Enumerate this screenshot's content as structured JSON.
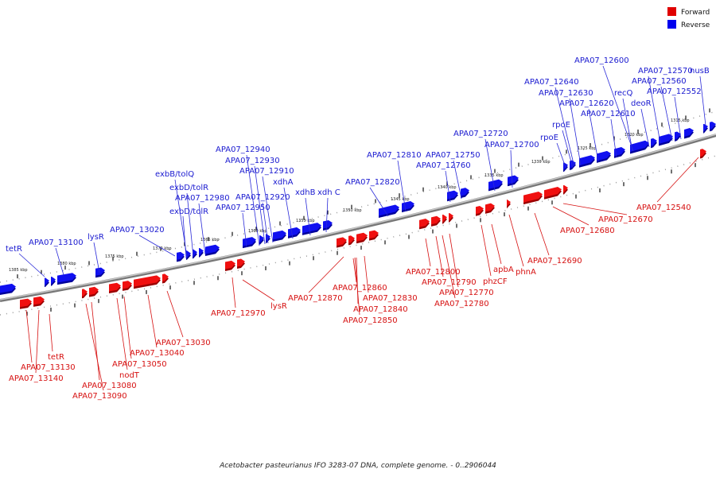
{
  "legend": {
    "items": [
      {
        "label": "Forward",
        "color": "#e00000"
      },
      {
        "label": "Reverse",
        "color": "#0000ee"
      }
    ]
  },
  "caption": "Acetobacter pasteurianus IFO 3283-07 DNA, complete genome. - 0..2906044",
  "ticks": [
    "1385 kbp",
    "1380 kbp",
    "1375 kbp",
    "1370 kbp",
    "1365 kbp",
    "1360 kbp",
    "1355 kbp",
    "1350 kbp",
    "1345 kbp",
    "1340 kbp",
    "1335 kbp",
    "1330 kbp",
    "1325 kbp",
    "1320 kbp",
    "1315 kbp"
  ],
  "labels": {
    "reverse": [
      "tetR",
      "APA07_13100",
      "lysR",
      "APA07_13020",
      "exbD/tolR",
      "APA07_12980",
      "exbD/tolR",
      "exbB/tolQ",
      "APA07_12950",
      "APA07_12920",
      "APA07_12910",
      "APA07_12930",
      "APA07_12940",
      "xdhA",
      "xdhB",
      "xdh C",
      "APA07_12820",
      "APA07_12810",
      "APA07_12760",
      "APA07_12750",
      "APA07_12720",
      "APA07_12700",
      "rpoE",
      "rpoE",
      "APA07_12640",
      "APA07_12630",
      "APA07_12620",
      "APA07_12610",
      "APA07_12600",
      "recQ",
      "deoR",
      "APA07_12570",
      "APA07_12560",
      "APA07_12552",
      "nusB"
    ],
    "forward": [
      "APA07_13130",
      "APA07_13140",
      "tetR",
      "APA07_13080",
      "APA07_13090",
      "nodT",
      "APA07_13050",
      "APA07_13040",
      "APA07_13030",
      "APA07_12970",
      "lysR",
      "APA07_12870",
      "APA07_12860",
      "APA07_12830",
      "APA07_12840",
      "APA07_12850",
      "APA07_12800",
      "APA07_12790",
      "APA07_12770",
      "APA07_12780",
      "phzCF",
      "apbA",
      "phnA",
      "APA07_12690",
      "APA07_12680",
      "APA07_12670",
      "APA07_12540"
    ]
  }
}
